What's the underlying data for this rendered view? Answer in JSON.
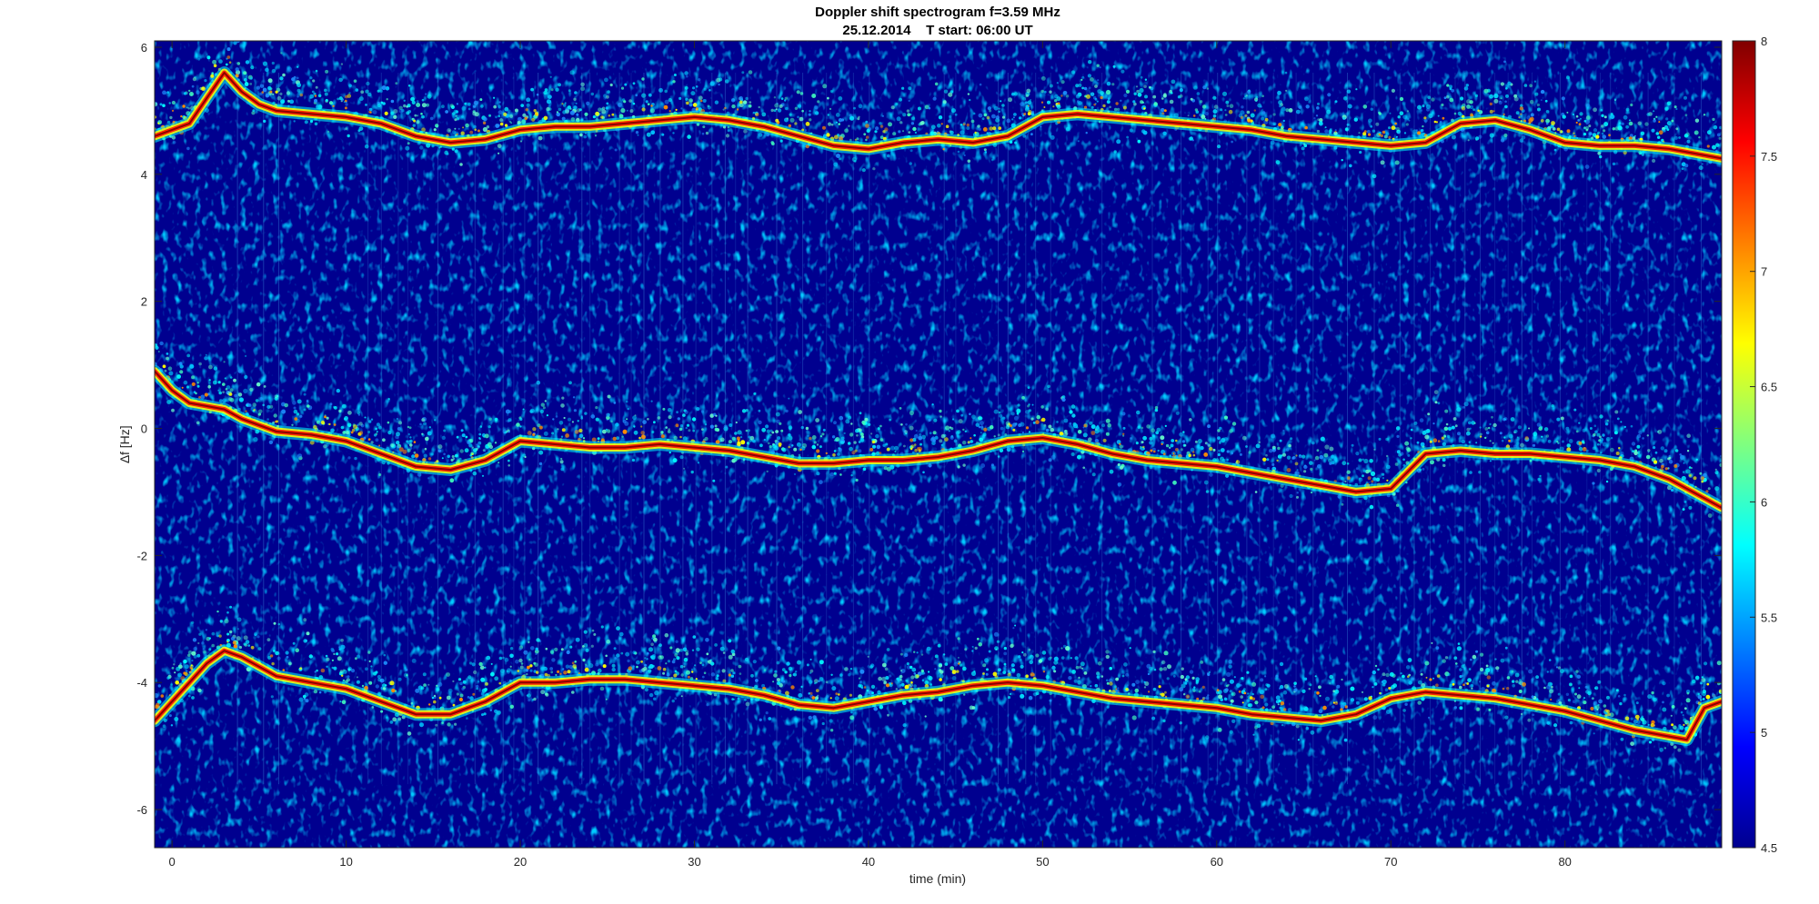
{
  "chart_data": {
    "type": "heatmap",
    "title": "Doppler shift spectrogram f=3.59 MHz",
    "subtitle": "25.12.2014    T start: 06:00 UT",
    "xlabel": "time (min)",
    "ylabel": "∆f [Hz]",
    "xlim": [
      -1,
      89
    ],
    "ylim": [
      -6.6,
      6.1
    ],
    "xticks": [
      0,
      10,
      20,
      30,
      40,
      50,
      60,
      70,
      80
    ],
    "yticks": [
      -6,
      -4,
      -2,
      0,
      2,
      4,
      6
    ],
    "colorbar": {
      "colormap": "jet",
      "clim": [
        4.5,
        8
      ],
      "ticks": [
        4.5,
        5,
        5.5,
        6,
        6.5,
        7,
        7.5,
        8
      ]
    },
    "background_color": "#00008f",
    "traces": [
      {
        "label": "upper",
        "x": [
          -1,
          0,
          1,
          2,
          3,
          4,
          5,
          6,
          8,
          10,
          12,
          14,
          16,
          18,
          20,
          22,
          24,
          26,
          28,
          30,
          32,
          34,
          36,
          38,
          40,
          42,
          44,
          46,
          48,
          50,
          52,
          54,
          56,
          58,
          60,
          62,
          64,
          66,
          68,
          70,
          72,
          74,
          76,
          78,
          80,
          82,
          84,
          86,
          88,
          89
        ],
        "y": [
          4.6,
          4.7,
          4.8,
          5.2,
          5.6,
          5.3,
          5.1,
          5.0,
          4.95,
          4.9,
          4.8,
          4.6,
          4.5,
          4.55,
          4.7,
          4.75,
          4.75,
          4.8,
          4.85,
          4.9,
          4.85,
          4.75,
          4.6,
          4.45,
          4.4,
          4.5,
          4.55,
          4.5,
          4.6,
          4.9,
          4.95,
          4.9,
          4.85,
          4.8,
          4.75,
          4.7,
          4.6,
          4.55,
          4.5,
          4.45,
          4.5,
          4.8,
          4.85,
          4.7,
          4.5,
          4.45,
          4.45,
          4.4,
          4.3,
          4.25
        ]
      },
      {
        "label": "middle",
        "x": [
          -1,
          0,
          1,
          2,
          3,
          4,
          6,
          8,
          10,
          12,
          14,
          16,
          18,
          20,
          22,
          24,
          26,
          28,
          30,
          32,
          34,
          36,
          38,
          40,
          42,
          44,
          46,
          48,
          50,
          52,
          54,
          56,
          58,
          60,
          62,
          64,
          66,
          68,
          70,
          72,
          74,
          76,
          78,
          80,
          82,
          84,
          86,
          88,
          89
        ],
        "y": [
          0.9,
          0.6,
          0.4,
          0.35,
          0.3,
          0.15,
          -0.05,
          -0.1,
          -0.2,
          -0.4,
          -0.6,
          -0.65,
          -0.5,
          -0.2,
          -0.25,
          -0.3,
          -0.3,
          -0.25,
          -0.3,
          -0.35,
          -0.45,
          -0.55,
          -0.55,
          -0.5,
          -0.5,
          -0.45,
          -0.35,
          -0.2,
          -0.15,
          -0.25,
          -0.4,
          -0.5,
          -0.55,
          -0.6,
          -0.7,
          -0.8,
          -0.9,
          -1.0,
          -0.95,
          -0.4,
          -0.35,
          -0.4,
          -0.4,
          -0.45,
          -0.5,
          -0.6,
          -0.8,
          -1.1,
          -1.25
        ]
      },
      {
        "label": "lower",
        "x": [
          -1,
          0,
          1,
          2,
          3,
          4,
          6,
          8,
          10,
          12,
          14,
          16,
          18,
          20,
          22,
          24,
          26,
          28,
          30,
          32,
          34,
          36,
          38,
          40,
          42,
          44,
          46,
          48,
          50,
          52,
          54,
          56,
          58,
          60,
          62,
          64,
          66,
          68,
          70,
          72,
          74,
          76,
          78,
          80,
          82,
          84,
          86,
          87,
          88,
          89
        ],
        "y": [
          -4.6,
          -4.3,
          -4.0,
          -3.7,
          -3.5,
          -3.6,
          -3.9,
          -4.0,
          -4.1,
          -4.3,
          -4.5,
          -4.5,
          -4.3,
          -4.0,
          -4.0,
          -3.95,
          -3.95,
          -4.0,
          -4.05,
          -4.1,
          -4.2,
          -4.35,
          -4.4,
          -4.3,
          -4.2,
          -4.15,
          -4.05,
          -4.0,
          -4.05,
          -4.15,
          -4.25,
          -4.3,
          -4.35,
          -4.4,
          -4.5,
          -4.55,
          -4.6,
          -4.5,
          -4.25,
          -4.15,
          -4.2,
          -4.25,
          -4.35,
          -4.45,
          -4.6,
          -4.75,
          -4.85,
          -4.9,
          -4.4,
          -4.3
        ]
      }
    ]
  }
}
